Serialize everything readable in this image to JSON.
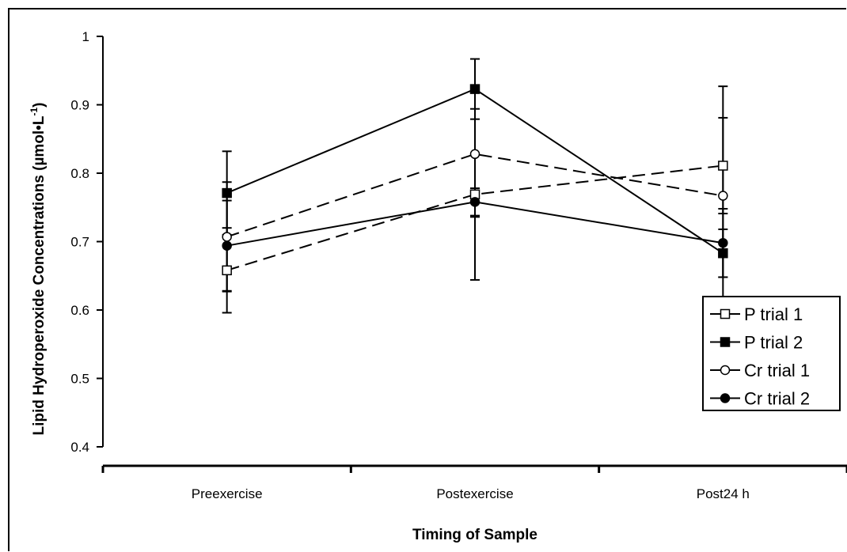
{
  "chart_data": {
    "type": "line",
    "title": "",
    "xlabel": "Timing of Sample",
    "ylabel": "Lipid Hydroperoxide Concentrations (µmol•L",
    "ylabel_sup": "-1",
    "ylabel_close": ")",
    "categories": [
      "Preexercise",
      "Postexercise",
      "Post24 h"
    ],
    "ylim": [
      0.4,
      1
    ],
    "yticks": [
      "0.4",
      "0.5",
      "0.6",
      "0.7",
      "0.8",
      "0.9",
      "1"
    ],
    "grid": false,
    "legend_position": "right",
    "series": [
      {
        "name": "P trial 1",
        "values": [
          0.658,
          0.769,
          0.811
        ],
        "error": [
          0.062,
          0.125,
          0.07
        ],
        "marker": "square",
        "filled": false,
        "dashed": true
      },
      {
        "name": "P trial 2",
        "values": [
          0.771,
          0.923,
          0.683
        ],
        "error": [
          0.061,
          0.044,
          0.035
        ],
        "marker": "square",
        "filled": true,
        "dashed": false
      },
      {
        "name": "Cr trial 1",
        "values": [
          0.707,
          0.828,
          0.767
        ],
        "error": [
          0.08,
          0.092,
          0.16
        ],
        "marker": "circle",
        "filled": false,
        "dashed": true
      },
      {
        "name": "Cr trial 2",
        "values": [
          0.694,
          0.758,
          0.698
        ],
        "error": [
          0.066,
          0.02,
          0.05
        ],
        "marker": "circle",
        "filled": true,
        "dashed": false
      }
    ]
  }
}
